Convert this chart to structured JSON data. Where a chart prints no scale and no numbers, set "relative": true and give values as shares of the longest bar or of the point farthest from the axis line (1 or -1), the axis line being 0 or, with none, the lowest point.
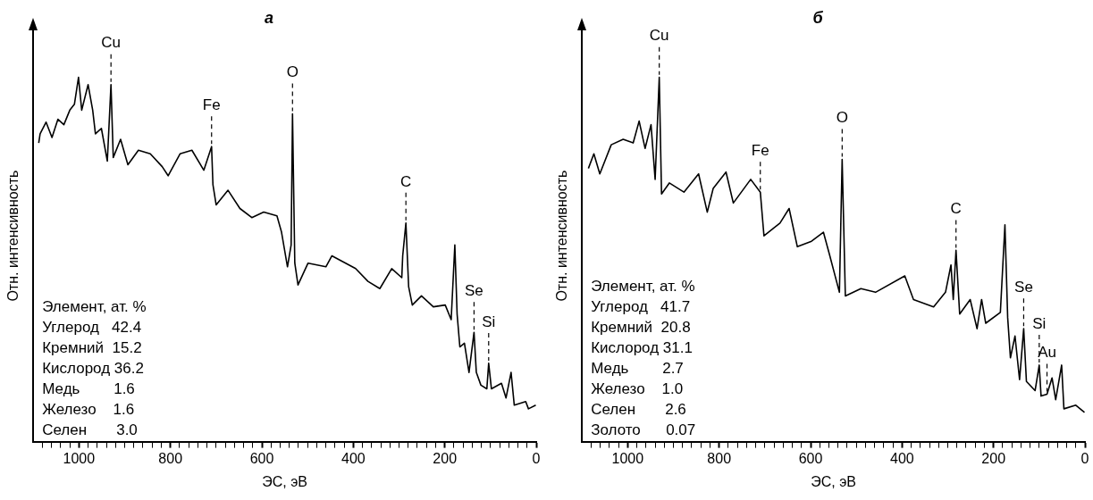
{
  "chart_data": [
    {
      "type": "line",
      "title": "а",
      "xlabel": "ЭС, эВ",
      "ylabel": "Отн. интенсивность",
      "relative": true,
      "color": "#000000",
      "xlim": [
        1100,
        0
      ],
      "xticks": [
        {
          "value": 0,
          "label": "0"
        },
        {
          "value": 20,
          "label": null
        },
        {
          "value": 40,
          "label": null
        },
        {
          "value": 60,
          "label": null
        },
        {
          "value": 80,
          "label": null
        },
        {
          "value": 100,
          "label": null
        },
        {
          "value": 120,
          "label": null
        },
        {
          "value": 140,
          "label": null
        },
        {
          "value": 160,
          "label": null
        },
        {
          "value": 180,
          "label": null
        },
        {
          "value": 200,
          "label": "200"
        },
        {
          "value": 220,
          "label": null
        },
        {
          "value": 240,
          "label": null
        },
        {
          "value": 260,
          "label": null
        },
        {
          "value": 280,
          "label": null
        },
        {
          "value": 300,
          "label": null
        },
        {
          "value": 320,
          "label": null
        },
        {
          "value": 340,
          "label": null
        },
        {
          "value": 360,
          "label": null
        },
        {
          "value": 380,
          "label": null
        },
        {
          "value": 400,
          "label": "400"
        },
        {
          "value": 420,
          "label": null
        },
        {
          "value": 440,
          "label": null
        },
        {
          "value": 460,
          "label": null
        },
        {
          "value": 480,
          "label": null
        },
        {
          "value": 500,
          "label": null
        },
        {
          "value": 520,
          "label": null
        },
        {
          "value": 540,
          "label": null
        },
        {
          "value": 560,
          "label": null
        },
        {
          "value": 580,
          "label": null
        },
        {
          "value": 600,
          "label": "600"
        },
        {
          "value": 620,
          "label": null
        },
        {
          "value": 640,
          "label": null
        },
        {
          "value": 660,
          "label": null
        },
        {
          "value": 680,
          "label": null
        },
        {
          "value": 700,
          "label": null
        },
        {
          "value": 720,
          "label": null
        },
        {
          "value": 740,
          "label": null
        },
        {
          "value": 760,
          "label": null
        },
        {
          "value": 780,
          "label": null
        },
        {
          "value": 800,
          "label": "800"
        },
        {
          "value": 820,
          "label": null
        },
        {
          "value": 840,
          "label": null
        },
        {
          "value": 860,
          "label": null
        },
        {
          "value": 880,
          "label": null
        },
        {
          "value": 900,
          "label": null
        },
        {
          "value": 920,
          "label": null
        },
        {
          "value": 940,
          "label": null
        },
        {
          "value": 960,
          "label": null
        },
        {
          "value": 980,
          "label": null
        },
        {
          "value": 1000,
          "label": "1000"
        },
        {
          "value": 1020,
          "label": null
        },
        {
          "value": 1040,
          "label": null
        },
        {
          "value": 1060,
          "label": null
        },
        {
          "value": 1080,
          "label": null
        }
      ],
      "x": [
        1088,
        1085,
        1072,
        1059,
        1046,
        1033,
        1020,
        1010,
        1001,
        994,
        980,
        970,
        964,
        951,
        938,
        930,
        925,
        909,
        893,
        870,
        844,
        818,
        805,
        779,
        753,
        727,
        710,
        707,
        700,
        674,
        648,
        622,
        596,
        567,
        557,
        544,
        536,
        533,
        528,
        521,
        499,
        460,
        447,
        395,
        368,
        342,
        316,
        294,
        292,
        285,
        279,
        271,
        251,
        225,
        199,
        186,
        178,
        173,
        167,
        157,
        147,
        136,
        131,
        121,
        108,
        104,
        98,
        76,
        66,
        55,
        48,
        23,
        17,
        1
      ],
      "values": [
        0.82,
        0.845,
        0.877,
        0.835,
        0.885,
        0.87,
        0.91,
        0.926,
        1.0,
        0.91,
        0.98,
        0.91,
        0.845,
        0.86,
        0.77,
        0.98,
        0.78,
        0.83,
        0.76,
        0.8,
        0.79,
        0.755,
        0.73,
        0.79,
        0.8,
        0.745,
        0.81,
        0.705,
        0.65,
        0.69,
        0.64,
        0.615,
        0.63,
        0.62,
        0.575,
        0.48,
        0.54,
        0.9,
        0.49,
        0.43,
        0.49,
        0.48,
        0.51,
        0.475,
        0.44,
        0.42,
        0.475,
        0.45,
        0.51,
        0.6,
        0.425,
        0.375,
        0.4,
        0.37,
        0.375,
        0.335,
        0.54,
        0.35,
        0.26,
        0.27,
        0.19,
        0.3,
        0.19,
        0.155,
        0.145,
        0.215,
        0.145,
        0.16,
        0.12,
        0.19,
        0.1,
        0.11,
        0.09,
        0.1
      ],
      "annotations": [
        {
          "text": "Cu",
          "x": 930,
          "y": 0.98
        },
        {
          "text": "Fe",
          "x": 710,
          "y": 0.81
        },
        {
          "text": "O",
          "x": 533,
          "y": 0.9
        },
        {
          "text": "C",
          "x": 285,
          "y": 0.6
        },
        {
          "text": "Se",
          "x": 136,
          "y": 0.3
        },
        {
          "text": "Si",
          "x": 104,
          "y": 0.215
        },
        "Элемент, ат. %",
        "Углерод   42.4",
        "Кремний  15.2",
        "Кислород 36.2",
        "Медь        1.6",
        "Железо    1.6",
        "Селен       3.0"
      ]
    },
    {
      "type": "line",
      "title": "б",
      "xlabel": "ЭС, эВ",
      "ylabel": "Отн. интенсивность",
      "relative": true,
      "color": "#000000",
      "xlim": [
        1100,
        0
      ],
      "xticks": [
        {
          "value": 0,
          "label": "0"
        },
        {
          "value": 20,
          "label": null
        },
        {
          "value": 40,
          "label": null
        },
        {
          "value": 60,
          "label": null
        },
        {
          "value": 80,
          "label": null
        },
        {
          "value": 100,
          "label": null
        },
        {
          "value": 120,
          "label": null
        },
        {
          "value": 140,
          "label": null
        },
        {
          "value": 160,
          "label": null
        },
        {
          "value": 180,
          "label": null
        },
        {
          "value": 200,
          "label": "200"
        },
        {
          "value": 220,
          "label": null
        },
        {
          "value": 240,
          "label": null
        },
        {
          "value": 260,
          "label": null
        },
        {
          "value": 280,
          "label": null
        },
        {
          "value": 300,
          "label": null
        },
        {
          "value": 320,
          "label": null
        },
        {
          "value": 340,
          "label": null
        },
        {
          "value": 360,
          "label": null
        },
        {
          "value": 380,
          "label": null
        },
        {
          "value": 400,
          "label": "400"
        },
        {
          "value": 420,
          "label": null
        },
        {
          "value": 440,
          "label": null
        },
        {
          "value": 460,
          "label": null
        },
        {
          "value": 480,
          "label": null
        },
        {
          "value": 500,
          "label": null
        },
        {
          "value": 520,
          "label": null
        },
        {
          "value": 540,
          "label": null
        },
        {
          "value": 560,
          "label": null
        },
        {
          "value": 580,
          "label": null
        },
        {
          "value": 600,
          "label": "600"
        },
        {
          "value": 620,
          "label": null
        },
        {
          "value": 640,
          "label": null
        },
        {
          "value": 660,
          "label": null
        },
        {
          "value": 680,
          "label": null
        },
        {
          "value": 700,
          "label": null
        },
        {
          "value": 720,
          "label": null
        },
        {
          "value": 740,
          "label": null
        },
        {
          "value": 760,
          "label": null
        },
        {
          "value": 780,
          "label": null
        },
        {
          "value": 800,
          "label": "800"
        },
        {
          "value": 820,
          "label": null
        },
        {
          "value": 840,
          "label": null
        },
        {
          "value": 860,
          "label": null
        },
        {
          "value": 880,
          "label": null
        },
        {
          "value": 900,
          "label": null
        },
        {
          "value": 920,
          "label": null
        },
        {
          "value": 940,
          "label": null
        },
        {
          "value": 960,
          "label": null
        },
        {
          "value": 980,
          "label": null
        },
        {
          "value": 1000,
          "label": "1000"
        },
        {
          "value": 1020,
          "label": null
        },
        {
          "value": 1040,
          "label": null
        },
        {
          "value": 1060,
          "label": null
        },
        {
          "value": 1080,
          "label": null
        }
      ],
      "x": [
        1086,
        1074,
        1061,
        1036,
        1010,
        988,
        975,
        962,
        949,
        940,
        931,
        926,
        909,
        877,
        845,
        826,
        813,
        785,
        769,
        731,
        710,
        702,
        667,
        647,
        629,
        598,
        572,
        559,
        537,
        531,
        524,
        490,
        458,
        394,
        375,
        331,
        305,
        293,
        288,
        282,
        274,
        251,
        236,
        226,
        217,
        185,
        175,
        169,
        163,
        153,
        143,
        134,
        128,
        109,
        100,
        96,
        83,
        72,
        64,
        51,
        46,
        20,
        1
      ],
      "values": [
        0.75,
        0.79,
        0.735,
        0.815,
        0.83,
        0.82,
        0.88,
        0.805,
        0.87,
        0.72,
        1.0,
        0.68,
        0.71,
        0.685,
        0.735,
        0.63,
        0.695,
        0.74,
        0.655,
        0.72,
        0.685,
        0.565,
        0.6,
        0.64,
        0.535,
        0.55,
        0.575,
        0.515,
        0.41,
        0.775,
        0.4,
        0.42,
        0.41,
        0.455,
        0.39,
        0.37,
        0.41,
        0.485,
        0.39,
        0.525,
        0.35,
        0.39,
        0.31,
        0.39,
        0.325,
        0.355,
        0.595,
        0.34,
        0.23,
        0.29,
        0.17,
        0.31,
        0.165,
        0.14,
        0.21,
        0.125,
        0.13,
        0.175,
        0.115,
        0.21,
        0.09,
        0.1,
        0.08
      ],
      "annotations": [
        {
          "text": "Cu",
          "x": 931,
          "y": 1.0
        },
        {
          "text": "Fe",
          "x": 710,
          "y": 0.685
        },
        {
          "text": "O",
          "x": 531,
          "y": 0.775
        },
        {
          "text": "C",
          "x": 282,
          "y": 0.525
        },
        {
          "text": "Se",
          "x": 134,
          "y": 0.31
        },
        {
          "text": "Si",
          "x": 100,
          "y": 0.21
        },
        {
          "text": "Au",
          "x": 83,
          "y": 0.13
        },
        "Элемент, ат. %",
        "Углерод   41.7",
        "Кремний  20.8",
        "Кислород 31.1",
        "Медь        2.7",
        "Железо    1.0",
        "Селен       2.6",
        "Золото      0.07"
      ]
    }
  ]
}
